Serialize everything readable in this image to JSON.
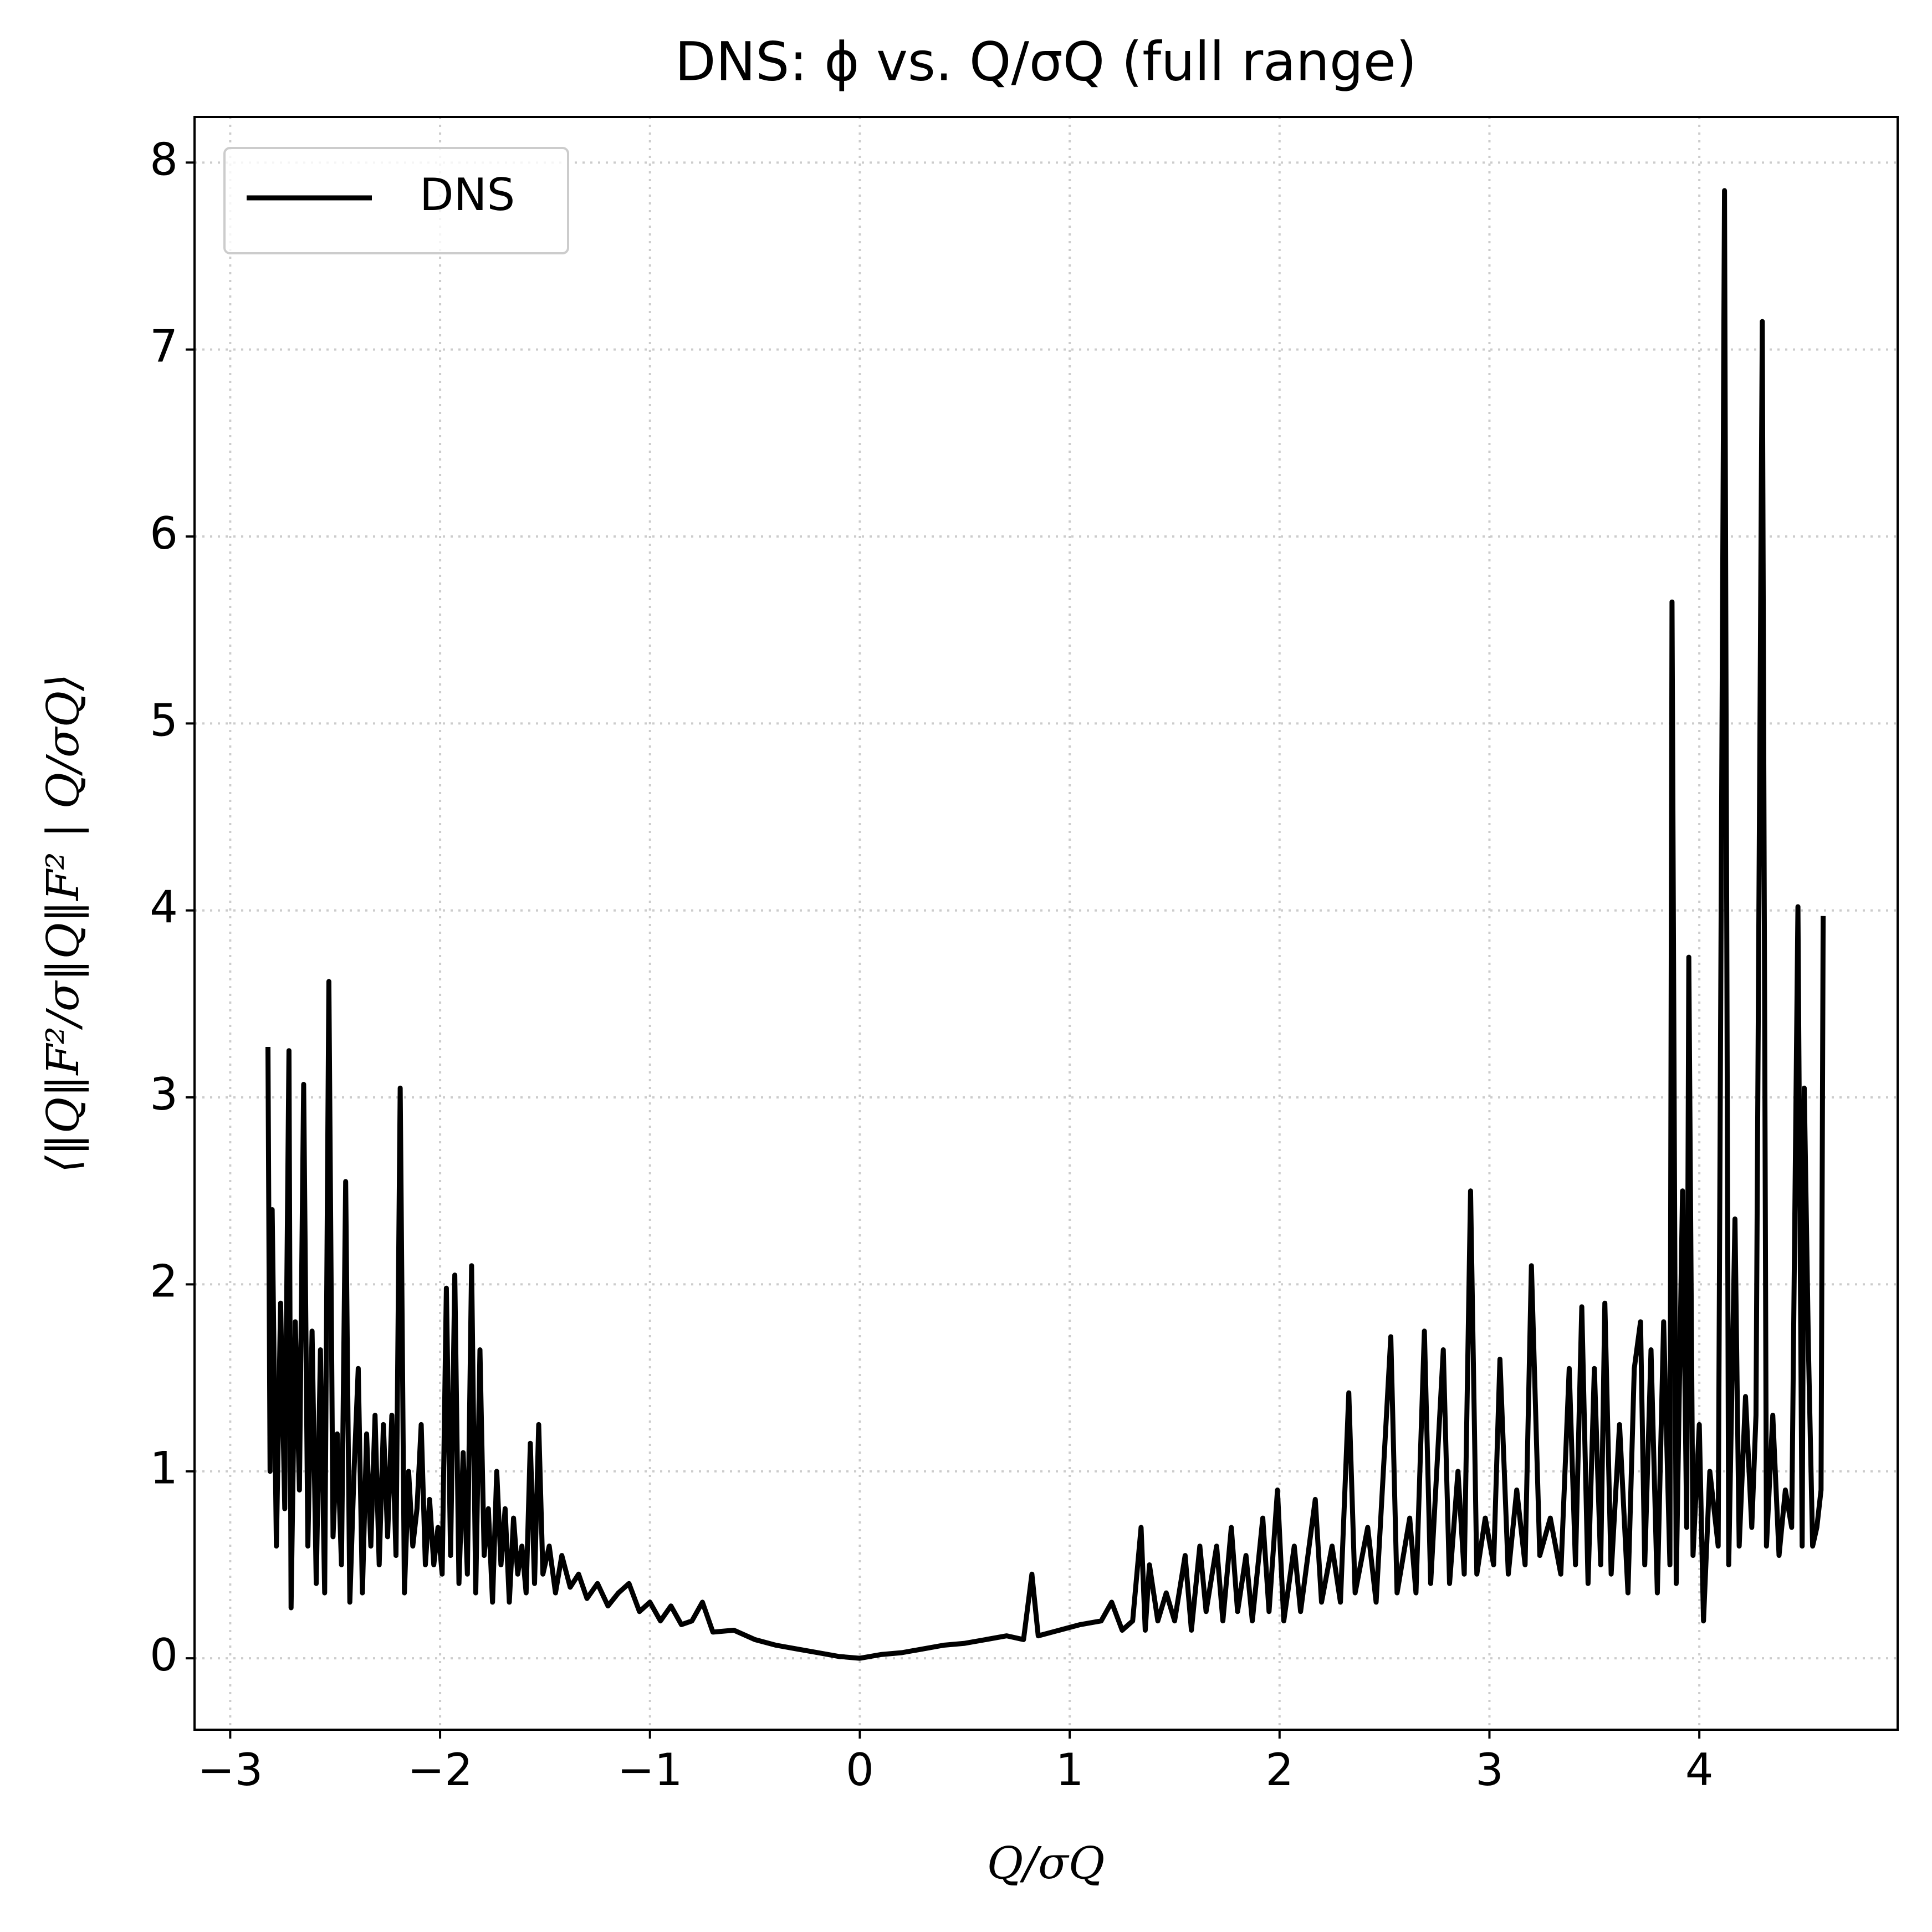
{
  "chart_data": {
    "type": "line",
    "title": "DNS: ϕ vs. Q/σQ (full range)",
    "x_label": "Q/σQ",
    "y_label": "⟨‖Q‖F²/σ‖Q‖F² | Q/σQ⟩",
    "x": [
      -2.82,
      -2.81,
      -2.8,
      -2.78,
      -2.76,
      -2.74,
      -2.72,
      -2.71,
      -2.69,
      -2.67,
      -2.65,
      -2.63,
      -2.61,
      -2.59,
      -2.57,
      -2.55,
      -2.53,
      -2.51,
      -2.49,
      -2.47,
      -2.45,
      -2.43,
      -2.41,
      -2.39,
      -2.37,
      -2.35,
      -2.33,
      -2.31,
      -2.29,
      -2.27,
      -2.25,
      -2.23,
      -2.21,
      -2.19,
      -2.17,
      -2.15,
      -2.13,
      -2.11,
      -2.09,
      -2.07,
      -2.05,
      -2.03,
      -2.01,
      -1.99,
      -1.97,
      -1.95,
      -1.93,
      -1.91,
      -1.89,
      -1.87,
      -1.85,
      -1.83,
      -1.81,
      -1.79,
      -1.77,
      -1.75,
      -1.73,
      -1.71,
      -1.69,
      -1.67,
      -1.65,
      -1.63,
      -1.61,
      -1.59,
      -1.57,
      -1.55,
      -1.53,
      -1.51,
      -1.48,
      -1.45,
      -1.42,
      -1.38,
      -1.34,
      -1.3,
      -1.25,
      -1.2,
      -1.15,
      -1.1,
      -1.05,
      -1.0,
      -0.95,
      -0.9,
      -0.85,
      -0.8,
      -0.75,
      -0.7,
      -0.6,
      -0.5,
      -0.4,
      -0.3,
      -0.2,
      -0.1,
      0,
      0.1,
      0.2,
      0.3,
      0.4,
      0.5,
      0.6,
      0.7,
      0.78,
      0.82,
      0.85,
      0.95,
      1.05,
      1.15,
      1.2,
      1.25,
      1.3,
      1.34,
      1.36,
      1.38,
      1.42,
      1.46,
      1.5,
      1.55,
      1.58,
      1.62,
      1.65,
      1.7,
      1.73,
      1.77,
      1.8,
      1.84,
      1.87,
      1.92,
      1.95,
      1.99,
      2.02,
      2.07,
      2.1,
      2.17,
      2.2,
      2.25,
      2.29,
      2.33,
      2.36,
      2.42,
      2.46,
      2.53,
      2.56,
      2.62,
      2.65,
      2.69,
      2.72,
      2.78,
      2.81,
      2.85,
      2.88,
      2.91,
      2.94,
      2.98,
      3.02,
      3.05,
      3.09,
      3.13,
      3.17,
      3.2,
      3.24,
      3.29,
      3.34,
      3.38,
      3.41,
      3.44,
      3.47,
      3.5,
      3.53,
      3.55,
      3.58,
      3.62,
      3.66,
      3.69,
      3.72,
      3.74,
      3.77,
      3.8,
      3.83,
      3.86,
      3.87,
      3.89,
      3.92,
      3.94,
      3.95,
      3.97,
      4.0,
      4.02,
      4.05,
      4.09,
      4.12,
      4.14,
      4.17,
      4.19,
      4.22,
      4.25,
      4.27,
      4.3,
      4.32,
      4.35,
      4.38,
      4.41,
      4.44,
      4.47,
      4.49,
      4.5,
      4.52,
      4.54,
      4.56,
      4.58,
      4.59
    ],
    "series": [
      {
        "name": "DNS",
        "color": "#000000",
        "values": [
          3.27,
          1.0,
          2.4,
          0.6,
          1.9,
          0.8,
          3.25,
          0.27,
          1.8,
          0.9,
          3.07,
          0.6,
          1.75,
          0.4,
          1.65,
          0.35,
          3.62,
          0.65,
          1.2,
          0.5,
          2.55,
          0.3,
          1.0,
          1.55,
          0.35,
          1.2,
          0.6,
          1.3,
          0.5,
          1.25,
          0.65,
          1.3,
          0.55,
          3.05,
          0.35,
          1.0,
          0.6,
          0.8,
          1.25,
          0.5,
          0.85,
          0.5,
          0.7,
          0.45,
          1.98,
          0.55,
          2.05,
          0.4,
          1.1,
          0.45,
          2.1,
          0.35,
          1.65,
          0.55,
          0.8,
          0.3,
          1.0,
          0.5,
          0.8,
          0.3,
          0.75,
          0.45,
          0.6,
          0.35,
          1.15,
          0.4,
          1.25,
          0.45,
          0.6,
          0.35,
          0.55,
          0.38,
          0.45,
          0.32,
          0.4,
          0.28,
          0.35,
          0.4,
          0.25,
          0.3,
          0.2,
          0.28,
          0.18,
          0.2,
          0.3,
          0.14,
          0.15,
          0.1,
          0.07,
          0.05,
          0.03,
          0.01,
          0.0,
          0.02,
          0.03,
          0.05,
          0.07,
          0.08,
          0.1,
          0.12,
          0.1,
          0.45,
          0.12,
          0.15,
          0.18,
          0.2,
          0.3,
          0.15,
          0.2,
          0.7,
          0.15,
          0.5,
          0.2,
          0.35,
          0.2,
          0.55,
          0.15,
          0.6,
          0.25,
          0.6,
          0.2,
          0.7,
          0.25,
          0.55,
          0.2,
          0.75,
          0.25,
          0.9,
          0.2,
          0.6,
          0.25,
          0.85,
          0.3,
          0.6,
          0.3,
          1.42,
          0.35,
          0.7,
          0.3,
          1.72,
          0.35,
          0.75,
          0.35,
          1.75,
          0.4,
          1.65,
          0.4,
          1.0,
          0.45,
          2.5,
          0.45,
          0.75,
          0.5,
          1.6,
          0.45,
          0.9,
          0.5,
          2.1,
          0.55,
          0.75,
          0.45,
          1.55,
          0.5,
          1.88,
          0.4,
          1.55,
          0.5,
          1.9,
          0.45,
          1.25,
          0.35,
          1.55,
          1.8,
          0.5,
          1.65,
          0.35,
          1.8,
          0.5,
          5.65,
          0.4,
          2.5,
          0.7,
          3.75,
          0.55,
          1.25,
          0.2,
          1.0,
          0.6,
          7.85,
          0.5,
          2.35,
          0.6,
          1.4,
          0.7,
          1.3,
          7.15,
          0.6,
          1.3,
          0.55,
          0.9,
          0.7,
          4.02,
          0.6,
          3.05,
          1.65,
          0.6,
          0.7,
          0.9,
          3.97
        ]
      }
    ],
    "xlim": [
      -3.17,
      4.945
    ],
    "ylim": [
      -0.382,
      8.244
    ],
    "xticks": [
      {
        "value": -3,
        "label": "−3"
      },
      {
        "value": -2,
        "label": "−2"
      },
      {
        "value": -1,
        "label": "−1"
      },
      0,
      1,
      2,
      3,
      4
    ],
    "yticks": [
      0,
      1,
      2,
      3,
      4,
      5,
      6,
      7,
      8
    ],
    "grid": true,
    "legend": "upper left"
  }
}
